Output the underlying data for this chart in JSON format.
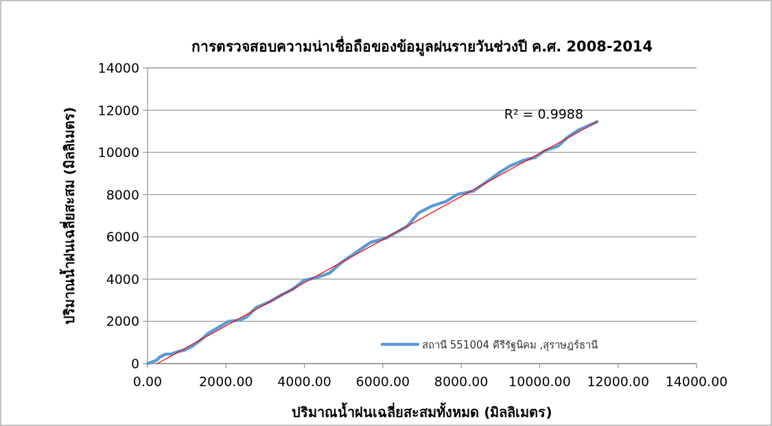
{
  "chart_data": {
    "type": "line",
    "title": "การตรวจสอบความน่าเชื่อถือของข้อมูลฝนรายวันช่วงปี ค.ศ. 2008-2014",
    "xlabel": "ปริมาณน้ำฝนเฉลี่ยสะสมทั้งหมด (มิลลิเมตร)",
    "ylabel": "ปริมาณน้ำฝนเฉลี่ยสะสม (มิลลิเมตร)",
    "annotations": [
      "R² = 0.9988"
    ],
    "xlim": [
      0,
      14000
    ],
    "ylim": [
      0,
      14000
    ],
    "xticks": [
      {
        "value": 0,
        "label": "0.00"
      },
      {
        "value": 2000,
        "label": "2000.00"
      },
      {
        "value": 4000,
        "label": "4000.00"
      },
      {
        "value": 6000,
        "label": "6000.00"
      },
      {
        "value": 8000,
        "label": "8000.00"
      },
      {
        "value": 10000,
        "label": "10000.00"
      },
      {
        "value": 12000,
        "label": "12000.00"
      },
      {
        "value": 14000,
        "label": "14000.00"
      }
    ],
    "yticks": [
      0,
      2000,
      4000,
      6000,
      8000,
      10000,
      12000,
      14000
    ],
    "grid": "y",
    "legend": "bottom right",
    "series": [
      {
        "name": "สถานี 551004 คีรีรัฐนิคม ,สุราษฎร์ธานี",
        "color": "#5b9bd5",
        "x": [
          0,
          233,
          320,
          467,
          612,
          758,
          933,
          1137,
          1371,
          1546,
          1779,
          2071,
          2362,
          2537,
          2771,
          3121,
          3412,
          3704,
          3996,
          4288,
          4638,
          4929,
          5221,
          5513,
          5688,
          6096,
          6621,
          6913,
          7263,
          7613,
          7904,
          8313,
          8604,
          9013,
          9246,
          9596,
          9888,
          10121,
          10471,
          10704,
          10996,
          11463
        ],
        "values": [
          0,
          160,
          320,
          450,
          450,
          560,
          630,
          810,
          1140,
          1430,
          1680,
          2000,
          2060,
          2220,
          2650,
          2930,
          3250,
          3520,
          3950,
          4060,
          4280,
          4760,
          5140,
          5520,
          5740,
          5950,
          6500,
          7140,
          7470,
          7680,
          8010,
          8170,
          8550,
          9090,
          9360,
          9630,
          9760,
          10070,
          10300,
          10710,
          11060,
          11450
        ]
      },
      {
        "type": "line",
        "color": "#ff0000",
        "x": [
          250,
          11463
        ],
        "values": [
          0,
          11450
        ]
      }
    ]
  }
}
